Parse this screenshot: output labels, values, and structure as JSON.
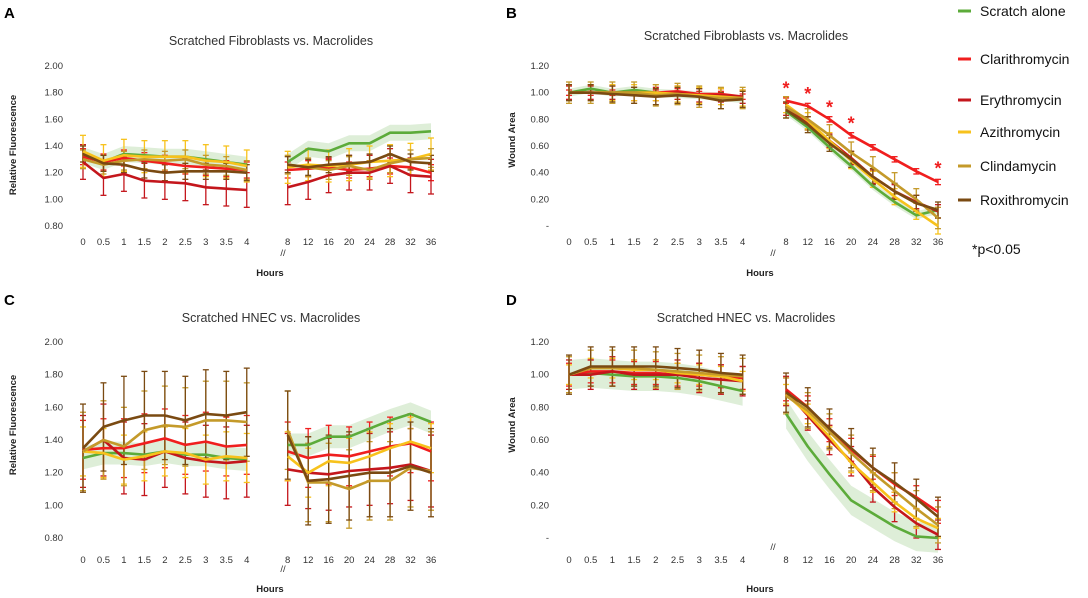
{
  "figure": {
    "legend": {
      "items": [
        {
          "label": "Scratch alone",
          "color": "#5cab3a"
        },
        {
          "label": "Clarithromycin",
          "color": "#f01e1e"
        },
        {
          "label": "Erythromycin",
          "color": "#c4161c"
        },
        {
          "label": "Azithromycin",
          "color": "#f7c21c"
        },
        {
          "label": "Clindamycin",
          "color": "#c49a2a"
        },
        {
          "label": "Roxithromycin",
          "color": "#7a4a12"
        }
      ],
      "footnote": "*p<0.05"
    }
  },
  "chart_data": [
    {
      "panel": "A",
      "type": "line",
      "title": "Scratched Fibroblasts vs. Macrolides",
      "xlabel": "Hours",
      "ylabel": "Relative Fluorescence",
      "categories": [
        "0",
        "0.5",
        "1",
        "1.5",
        "2",
        "2.5",
        "3",
        "3.5",
        "4",
        "8",
        "12",
        "16",
        "20",
        "24",
        "28",
        "32",
        "36"
      ],
      "axis_break": "//",
      "ylim": [
        0.8,
        2.0
      ],
      "yticks": [
        {
          "v": 0.8,
          "label": "0.80"
        },
        {
          "v": 1.0,
          "label": "1.00"
        },
        {
          "v": 1.2,
          "label": "1.20"
        },
        {
          "v": 1.4,
          "label": "1.40"
        },
        {
          "v": 1.6,
          "label": "1.60"
        },
        {
          "v": 1.8,
          "label": "1.80"
        },
        {
          "v": 2.0,
          "label": "2.00"
        }
      ],
      "series": [
        {
          "name": "Scratch alone",
          "color": "#5cab3a",
          "band": 0.06,
          "values": [
            1.33,
            1.28,
            1.34,
            1.33,
            1.32,
            1.32,
            1.3,
            1.28,
            1.26,
            1.28,
            1.38,
            1.36,
            1.42,
            1.42,
            1.5,
            1.5,
            1.51
          ]
        },
        {
          "name": "Clarithromycin",
          "color": "#f01e1e",
          "err": 0.06,
          "values": [
            1.32,
            1.28,
            1.31,
            1.29,
            1.27,
            1.25,
            1.24,
            1.23,
            1.22,
            1.22,
            1.23,
            1.24,
            1.22,
            1.23,
            1.25,
            1.24,
            1.2
          ]
        },
        {
          "name": "Erythromycin",
          "color": "#c4161c",
          "err": 0.13,
          "values": [
            1.28,
            1.16,
            1.19,
            1.14,
            1.13,
            1.12,
            1.09,
            1.08,
            1.07,
            1.09,
            1.13,
            1.18,
            1.2,
            1.2,
            1.25,
            1.18,
            1.17
          ]
        },
        {
          "name": "Azithromycin",
          "color": "#f7c21c",
          "err": 0.12,
          "values": [
            1.36,
            1.29,
            1.33,
            1.32,
            1.32,
            1.32,
            1.29,
            1.28,
            1.25,
            1.24,
            1.26,
            1.25,
            1.26,
            1.28,
            1.29,
            1.3,
            1.34
          ]
        },
        {
          "name": "Clindamycin",
          "color": "#c49a2a",
          "err": 0.07,
          "values": [
            1.3,
            1.26,
            1.29,
            1.3,
            1.29,
            1.3,
            1.26,
            1.25,
            1.22,
            1.26,
            1.24,
            1.22,
            1.25,
            1.22,
            1.27,
            1.3,
            1.31
          ]
        },
        {
          "name": "Roxithromycin",
          "color": "#7a4a12",
          "err": 0.06,
          "values": [
            1.34,
            1.27,
            1.26,
            1.22,
            1.2,
            1.21,
            1.21,
            1.21,
            1.2,
            1.26,
            1.24,
            1.26,
            1.27,
            1.28,
            1.34,
            1.28,
            1.27
          ]
        }
      ],
      "annotations": []
    },
    {
      "panel": "B",
      "type": "line",
      "title": "Scratched Fibroblasts vs. Macrolides",
      "xlabel": "Hours",
      "ylabel": "Wound Area",
      "categories": [
        "0",
        "0.5",
        "1",
        "1.5",
        "2",
        "2.5",
        "3",
        "3.5",
        "4",
        "8",
        "12",
        "16",
        "20",
        "24",
        "28",
        "32",
        "36"
      ],
      "axis_break": "//",
      "ylim": [
        0,
        1.2
      ],
      "yticks": [
        {
          "v": 0.0,
          "label": "-"
        },
        {
          "v": 0.2,
          "label": "0.20"
        },
        {
          "v": 0.4,
          "label": "0.40"
        },
        {
          "v": 0.6,
          "label": "0.60"
        },
        {
          "v": 0.8,
          "label": "0.80"
        },
        {
          "v": 1.0,
          "label": "1.00"
        },
        {
          "v": 1.2,
          "label": "1.20"
        }
      ],
      "series": [
        {
          "name": "Scratch alone",
          "color": "#5cab3a",
          "band": 0.03,
          "values": [
            1.0,
            1.03,
            1.0,
            1.02,
            1.0,
            0.99,
            0.98,
            0.97,
            0.95,
            0.86,
            0.74,
            0.59,
            0.45,
            0.3,
            0.18,
            0.08,
            0.12
          ]
        },
        {
          "name": "Clarithromycin",
          "color": "#f01e1e",
          "err": 0.02,
          "values": [
            1.0,
            1.0,
            1.0,
            1.0,
            1.0,
            1.01,
            0.99,
            0.99,
            0.97,
            0.94,
            0.9,
            0.8,
            0.68,
            0.59,
            0.5,
            0.41,
            0.33
          ]
        },
        {
          "name": "Erythromycin",
          "color": "#c4161c",
          "err": 0.05,
          "values": [
            1.0,
            1.0,
            1.0,
            0.99,
            0.99,
            1.0,
            0.98,
            0.98,
            0.97,
            0.88,
            0.77,
            0.64,
            0.51,
            0.37,
            0.26,
            0.18,
            0.11
          ]
        },
        {
          "name": "Azithromycin",
          "color": "#f7c21c",
          "err": 0.06,
          "values": [
            1.0,
            1.0,
            1.0,
            1.0,
            1.0,
            0.99,
            0.98,
            0.97,
            0.96,
            0.91,
            0.79,
            0.64,
            0.49,
            0.35,
            0.22,
            0.11,
            0.0
          ]
        },
        {
          "name": "Clindamycin",
          "color": "#c49a2a",
          "err": 0.08,
          "values": [
            1.0,
            1.0,
            1.0,
            1.0,
            0.98,
            0.99,
            0.97,
            0.96,
            0.96,
            0.89,
            0.8,
            0.68,
            0.55,
            0.44,
            0.32,
            0.2,
            0.06
          ]
        },
        {
          "name": "Roxithromycin",
          "color": "#7a4a12",
          "err": 0.06,
          "values": [
            1.0,
            1.0,
            0.99,
            0.98,
            0.97,
            0.98,
            0.97,
            0.94,
            0.95,
            0.87,
            0.76,
            0.62,
            0.5,
            0.37,
            0.26,
            0.17,
            0.12
          ]
        }
      ],
      "annotations": [
        {
          "label": "*",
          "x_index": 9,
          "y": 1.0
        },
        {
          "label": "*",
          "x_index": 10,
          "y": 0.96
        },
        {
          "label": "*",
          "x_index": 11,
          "y": 0.86
        },
        {
          "label": "*",
          "x_index": 12,
          "y": 0.74
        },
        {
          "label": "*",
          "x_index": 16,
          "y": 0.4
        }
      ]
    },
    {
      "panel": "C",
      "type": "line",
      "title": "Scratched HNEC vs. Macrolides",
      "xlabel": "Hours",
      "ylabel": "Relative Fluorescence",
      "categories": [
        "0",
        "0.5",
        "1",
        "1.5",
        "2",
        "2.5",
        "3",
        "3.5",
        "4",
        "8",
        "12",
        "16",
        "20",
        "24",
        "28",
        "32",
        "36"
      ],
      "axis_break": "//",
      "ylim": [
        0.8,
        2.0
      ],
      "yticks": [
        {
          "v": 0.8,
          "label": "0.80"
        },
        {
          "v": 1.0,
          "label": "1.00"
        },
        {
          "v": 1.2,
          "label": "1.20"
        },
        {
          "v": 1.4,
          "label": "1.40"
        },
        {
          "v": 1.6,
          "label": "1.60"
        },
        {
          "v": 1.8,
          "label": "1.80"
        },
        {
          "v": 2.0,
          "label": "2.00"
        }
      ],
      "series": [
        {
          "name": "Scratch alone",
          "color": "#5cab3a",
          "band": 0.07,
          "values": [
            1.29,
            1.32,
            1.32,
            1.31,
            1.33,
            1.31,
            1.31,
            1.29,
            1.28,
            1.37,
            1.37,
            1.42,
            1.42,
            1.47,
            1.52,
            1.56,
            1.51
          ]
        },
        {
          "name": "Clarithromycin",
          "color": "#f01e1e",
          "err": 0.18,
          "values": [
            1.34,
            1.35,
            1.35,
            1.38,
            1.41,
            1.37,
            1.39,
            1.36,
            1.37,
            1.33,
            1.29,
            1.31,
            1.3,
            1.33,
            1.36,
            1.38,
            1.33
          ]
        },
        {
          "name": "Erythromycin",
          "color": "#c4161c",
          "err": 0.22,
          "values": [
            1.33,
            1.4,
            1.29,
            1.28,
            1.33,
            1.29,
            1.27,
            1.26,
            1.27,
            1.22,
            1.2,
            1.19,
            1.21,
            1.22,
            1.23,
            1.25,
            1.21
          ]
        },
        {
          "name": "Azithromycin",
          "color": "#f7c21c",
          "err": 0.15,
          "values": [
            1.33,
            1.32,
            1.28,
            1.3,
            1.33,
            1.32,
            1.28,
            1.3,
            1.29,
            1.3,
            1.2,
            1.27,
            1.26,
            1.3,
            1.35,
            1.39,
            1.35
          ]
        },
        {
          "name": "Clindamycin",
          "color": "#c49a2a",
          "err": 0.24,
          "values": [
            1.33,
            1.4,
            1.36,
            1.46,
            1.49,
            1.48,
            1.52,
            1.52,
            1.51,
            1.46,
            1.14,
            1.14,
            1.1,
            1.15,
            1.15,
            1.23,
            1.21
          ]
        },
        {
          "name": "Roxithromycin",
          "color": "#7a4a12",
          "err": 0.27,
          "values": [
            1.35,
            1.48,
            1.52,
            1.55,
            1.55,
            1.52,
            1.56,
            1.55,
            1.57,
            1.43,
            1.15,
            1.16,
            1.18,
            1.2,
            1.2,
            1.24,
            1.2
          ]
        }
      ],
      "annotations": []
    },
    {
      "panel": "D",
      "type": "line",
      "title": "Scratched HNEC vs. Macrolides",
      "xlabel": "Hours",
      "ylabel": "Wound Area",
      "categories": [
        "0",
        "0.5",
        "1",
        "1.5",
        "2",
        "2.5",
        "3",
        "3.5",
        "4",
        "8",
        "12",
        "16",
        "20",
        "24",
        "28",
        "32",
        "36"
      ],
      "axis_break": "//",
      "ylim": [
        0,
        1.2
      ],
      "yticks": [
        {
          "v": 0.0,
          "label": "-"
        },
        {
          "v": 0.2,
          "label": "0.20"
        },
        {
          "v": 0.4,
          "label": "0.40"
        },
        {
          "v": 0.6,
          "label": "0.60"
        },
        {
          "v": 0.8,
          "label": "0.80"
        },
        {
          "v": 1.0,
          "label": "1.00"
        },
        {
          "v": 1.2,
          "label": "1.20"
        }
      ],
      "series": [
        {
          "name": "Scratch alone",
          "color": "#5cab3a",
          "band": 0.09,
          "values": [
            1.0,
            1.01,
            1.0,
            0.99,
            0.99,
            0.98,
            0.96,
            0.93,
            0.9,
            0.76,
            0.56,
            0.39,
            0.23,
            0.15,
            0.07,
            0.01,
            0.0
          ]
        },
        {
          "name": "Clarithromycin",
          "color": "#f01e1e",
          "err": 0.07,
          "values": [
            1.0,
            1.02,
            1.02,
            1.01,
            1.01,
            1.0,
            1.0,
            0.99,
            0.98,
            0.91,
            0.8,
            0.66,
            0.54,
            0.43,
            0.33,
            0.25,
            0.16
          ]
        },
        {
          "name": "Erythromycin",
          "color": "#c4161c",
          "err": 0.09,
          "values": [
            1.0,
            1.0,
            1.02,
            1.0,
            1.0,
            1.0,
            0.98,
            0.97,
            0.96,
            0.9,
            0.75,
            0.6,
            0.47,
            0.31,
            0.19,
            0.09,
            0.02
          ]
        },
        {
          "name": "Azithromycin",
          "color": "#f7c21c",
          "err": 0.06,
          "values": [
            1.0,
            1.04,
            1.04,
            1.03,
            1.03,
            1.01,
            1.0,
            0.99,
            0.96,
            0.88,
            0.76,
            0.62,
            0.46,
            0.34,
            0.22,
            0.12,
            0.06
          ]
        },
        {
          "name": "Clindamycin",
          "color": "#c49a2a",
          "err": 0.11,
          "values": [
            1.0,
            1.04,
            1.04,
            1.04,
            1.03,
            1.02,
            1.01,
            1.0,
            0.99,
            0.87,
            0.78,
            0.65,
            0.52,
            0.4,
            0.29,
            0.18,
            0.08
          ]
        },
        {
          "name": "Roxithromycin",
          "color": "#7a4a12",
          "err": 0.12,
          "values": [
            1.0,
            1.05,
            1.05,
            1.05,
            1.05,
            1.04,
            1.03,
            1.01,
            1.0,
            0.89,
            0.8,
            0.67,
            0.55,
            0.43,
            0.34,
            0.24,
            0.13
          ]
        }
      ],
      "annotations": []
    }
  ]
}
